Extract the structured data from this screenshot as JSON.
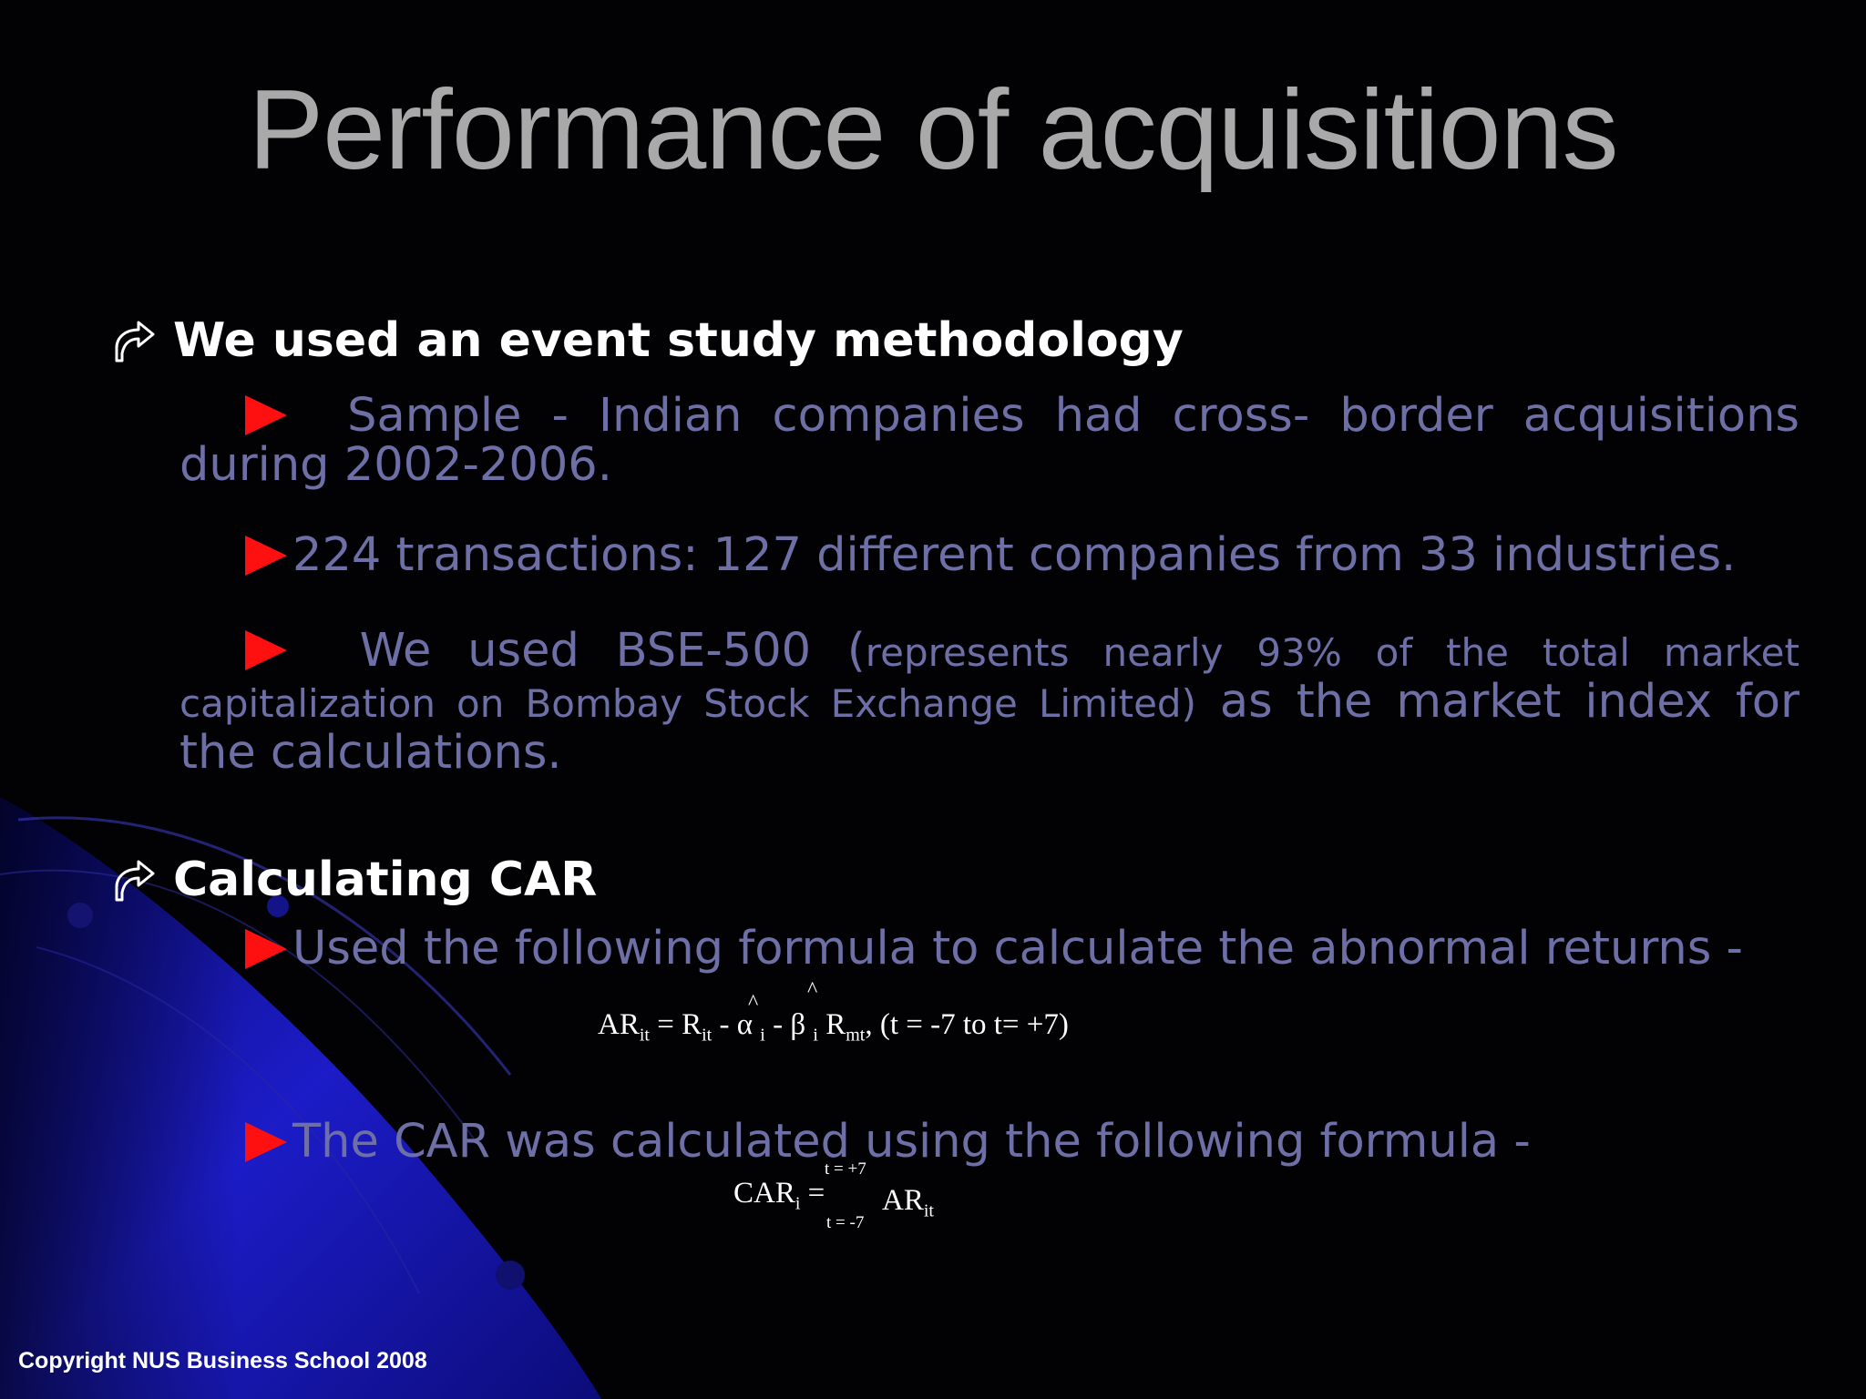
{
  "slide": {
    "title": "Performance of acquisitions",
    "section1": {
      "heading": "We used an event study methodology",
      "item1_lead": "Sample - Indian companies had cross- border acquisitions during 2002-2006.",
      "item2": "224 transactions: 127 different companies from 33 industries.",
      "item3_lead": "We used BSE-500 (",
      "item3_small": "represents nearly 93% of the total market capitalization on Bombay Stock Exchange Limited)",
      "item3_tail": " as the market index for the calculations."
    },
    "section2": {
      "heading": "Calculating CAR",
      "item1": "Used the following formula to calculate the abnormal returns -",
      "formula1": {
        "ar": "AR",
        "ar_sub": "it",
        "eq": " = R",
        "r_sub": "it",
        "minus1": " - ",
        "alpha": "α",
        "alpha_sub": "i",
        "minus2": " - ",
        "beta": "β",
        "beta_sub": "i",
        "rm": " R",
        "rm_sub": "mt",
        "range": ", (t = -7 to t= +7)",
        "hat": "^"
      },
      "item2": "The CAR was calculated using the following formula -",
      "formula2": {
        "car": "CAR",
        "car_sub": "i",
        "eq": " =",
        "upper": "t = +7",
        "lower": "t = -7",
        "ar": "AR",
        "ar_sub": "it"
      }
    },
    "copyright": "Copyright NUS Business School 2008",
    "colors": {
      "title": "#a9a9a9",
      "heading": "#ffffff",
      "body": "#6f6fa8",
      "bullet": "#ff1010",
      "accent_blue": "#1a1ab4"
    },
    "icons": [
      "curved-arrow-icon",
      "red-triangle-bullet-icon"
    ]
  }
}
